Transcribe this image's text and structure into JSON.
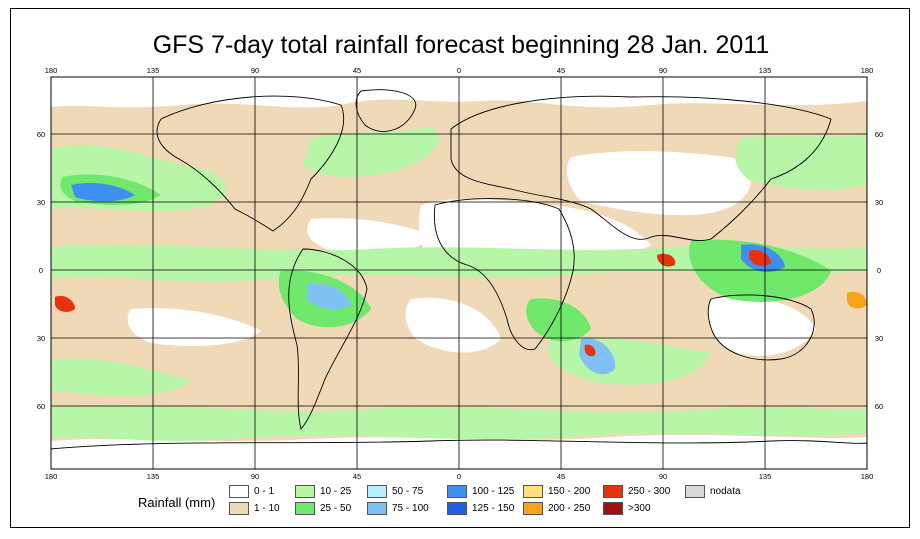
{
  "title": "GFS 7-day total rainfall forecast beginning 28 Jan. 2011",
  "top_ticks": [
    "180",
    "135",
    "90",
    "45",
    "0",
    "45",
    "90",
    "135",
    "180"
  ],
  "bottom_ticks": [
    "180",
    "135",
    "90",
    "45",
    "0",
    "45",
    "90",
    "135",
    "180"
  ],
  "left_ticks": [
    "60",
    "30",
    "0",
    "30",
    "60"
  ],
  "right_ticks": [
    "60",
    "30",
    "0",
    "30",
    "60"
  ],
  "legend": {
    "label": "Rainfall (mm)",
    "items": [
      {
        "range": "0 - 1",
        "color": "#ffffff"
      },
      {
        "range": "1 - 10",
        "color": "#efd9b7"
      },
      {
        "range": "10 - 25",
        "color": "#b7f6a6"
      },
      {
        "range": "25 - 50",
        "color": "#6fe86c"
      },
      {
        "range": "50 - 75",
        "color": "#b9eefb"
      },
      {
        "range": "75 - 100",
        "color": "#7fc1f5"
      },
      {
        "range": "100 - 125",
        "color": "#3f8ff0"
      },
      {
        "range": "125 - 150",
        "color": "#1c5fe0"
      },
      {
        "range": "150 - 200",
        "color": "#fde07a"
      },
      {
        "range": "200 - 250",
        "color": "#f8a21a"
      },
      {
        "range": "250 - 300",
        "color": "#e8320d"
      },
      {
        "range": ">300",
        "color": "#a01010"
      },
      {
        "range": "nodata",
        "color": "#d9d9d9"
      }
    ]
  }
}
